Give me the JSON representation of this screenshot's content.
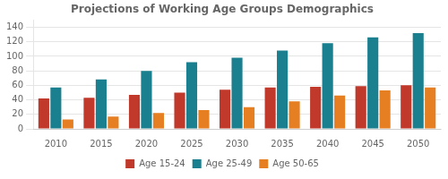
{
  "chart_data": {
    "type": "bar",
    "title": "Projections of Working Age Groups Demographics",
    "categories": [
      "2010",
      "2015",
      "2020",
      "2025",
      "2030",
      "2035",
      "2040",
      "2045",
      "2050"
    ],
    "series": [
      {
        "name": "Age 15-24",
        "color": "#C0392B",
        "values": [
          42,
          43,
          47,
          50,
          54,
          57,
          58,
          59,
          60
        ]
      },
      {
        "name": "Age 25-49",
        "color": "#1A7F8E",
        "values": [
          57,
          68,
          80,
          92,
          98,
          108,
          118,
          126,
          132
        ]
      },
      {
        "name": "Age 50-65",
        "color": "#E67E22",
        "values": [
          13,
          17,
          22,
          26,
          30,
          38,
          46,
          53,
          57
        ]
      }
    ],
    "ylim": [
      0,
      150
    ],
    "yticks": [
      0,
      20,
      40,
      60,
      80,
      100,
      120,
      140
    ],
    "grid": true,
    "legend": "bottom"
  }
}
